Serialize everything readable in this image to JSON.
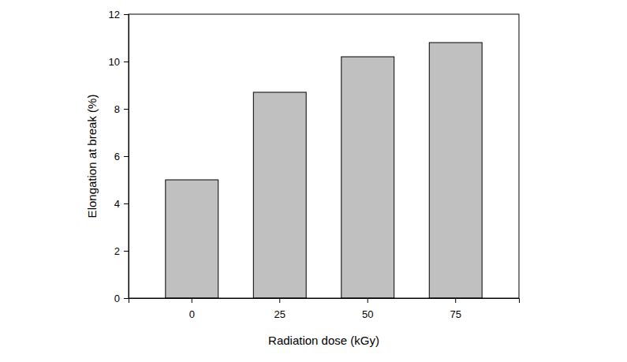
{
  "chart_data": {
    "type": "bar",
    "x_label": "Radiation dose (kGy)",
    "y_label": "Elongation at break (%)",
    "categories": [
      "0",
      "25",
      "50",
      "75"
    ],
    "values": [
      5.0,
      8.7,
      10.2,
      10.8
    ],
    "color": "#c0c0c0",
    "ylim": [
      0,
      12
    ],
    "yticks": [
      0,
      2,
      4,
      6,
      8,
      10,
      12
    ],
    "grid": false
  }
}
